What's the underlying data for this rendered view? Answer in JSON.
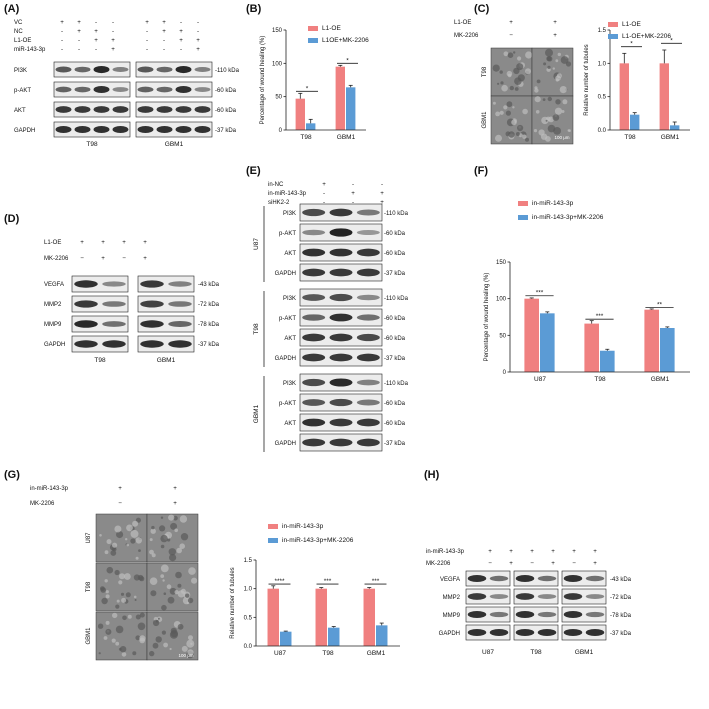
{
  "colors": {
    "red": "#F08080",
    "blue": "#5B9BD5",
    "blot_bg": "#ececec",
    "band": "#1a1a1a"
  },
  "panels": {
    "A": {
      "label": "(A)",
      "rows": [
        "VC",
        "NC",
        "L1-OE",
        "miR-143-3p"
      ],
      "signs_t98": [
        [
          "+",
          "+",
          "-",
          "-"
        ],
        [
          "-",
          "+",
          "+",
          "-"
        ],
        [
          "-",
          "-",
          "+",
          "+"
        ],
        [
          "-",
          "-",
          "-",
          "+"
        ]
      ],
      "signs_gbm1": [
        [
          "+",
          "+",
          "-",
          "-"
        ],
        [
          "-",
          "+",
          "+",
          "-"
        ],
        [
          "-",
          "-",
          "+",
          "+"
        ],
        [
          "-",
          "-",
          "-",
          "+"
        ]
      ],
      "bands": [
        "PI3K",
        "p-AKT",
        "AKT",
        "GAPDH"
      ],
      "kda": [
        "-110 kDa",
        "-60 kDa",
        "-60 kDa",
        "-37 kDa"
      ],
      "cells": [
        "T98",
        "GBM1"
      ]
    },
    "B": {
      "label": "(B)",
      "sig": [
        "*",
        "*"
      ]
    },
    "C": {
      "label": "(C)",
      "rows": [
        "L1-OE",
        "MK-2206"
      ],
      "signs": [
        [
          "+",
          "+"
        ],
        [
          "−",
          "+"
        ]
      ],
      "img_rows": [
        "T98",
        "GBM1"
      ],
      "scale": "100 μm",
      "sig": [
        "*",
        "*"
      ]
    },
    "D": {
      "label": "(D)",
      "rows": [
        "L1-OE",
        "MK-2206"
      ],
      "signs": [
        [
          "+",
          "+",
          "+",
          "+"
        ],
        [
          "−",
          "+",
          "−",
          "+"
        ]
      ],
      "bands": [
        "VEGFA",
        "MMP2",
        "MMP9",
        "GAPDH"
      ],
      "kda": [
        "-43 kDa",
        "-72 kDa",
        "-78 kDa",
        "-37 kDa"
      ],
      "cells": [
        "T98",
        "GBM1"
      ]
    },
    "E": {
      "label": "(E)",
      "rows": [
        "in-NC",
        "in-miR-143-3p",
        "siHK2-2"
      ],
      "signs": [
        [
          "+",
          "-",
          "-"
        ],
        [
          "-",
          "+",
          "+"
        ],
        [
          "-",
          "-",
          "+"
        ]
      ],
      "groups": [
        "U87",
        "T98",
        "GBM1"
      ],
      "bands": [
        "PI3K",
        "p-AKT",
        "AKT",
        "GAPDH"
      ],
      "kda": [
        "-110 kDa",
        "-60 kDa",
        "-60 kDa",
        "-37 kDa"
      ]
    },
    "F": {
      "label": "(F)",
      "sig": [
        "***",
        "***",
        "**"
      ]
    },
    "G": {
      "label": "(G)",
      "rows": [
        "in-miR-143-3p",
        "MK-2206"
      ],
      "signs": [
        [
          "+",
          "+"
        ],
        [
          "−",
          "+"
        ]
      ],
      "img_rows": [
        "U87",
        "T98",
        "GBM1"
      ],
      "scale": "100 μm",
      "sig": [
        "****",
        "***",
        "***"
      ]
    },
    "H": {
      "label": "(H)",
      "rows": [
        "in-miR-143-3p",
        "MK-2206"
      ],
      "signs": [
        [
          "+",
          "+",
          "+",
          "+",
          "+",
          "+"
        ],
        [
          "−",
          "+",
          "−",
          "+",
          "−",
          "+"
        ]
      ],
      "bands": [
        "VEGFA",
        "MMP2",
        "MMP9",
        "GAPDH"
      ],
      "kda": [
        "-43 kDa",
        "-72 kDa",
        "-78 kDa",
        "-37 kDa"
      ],
      "cells": [
        "U87",
        "T98",
        "GBM1"
      ]
    }
  },
  "chart_data": [
    {
      "panel": "B",
      "type": "bar",
      "categories": [
        "T98",
        "GBM1"
      ],
      "series": [
        {
          "name": "L1-OE",
          "values": [
            47,
            95
          ],
          "errors": [
            8,
            2
          ]
        },
        {
          "name": "L1OE+MK-2206",
          "values": [
            10,
            64
          ],
          "errors": [
            6,
            3
          ]
        }
      ],
      "ylabel": "Percentage of wound healing (%)",
      "ylim": [
        0,
        150
      ],
      "yticks": [
        0,
        50,
        100,
        150
      ],
      "legend": "top-left"
    },
    {
      "panel": "C",
      "type": "bar",
      "categories": [
        "T98",
        "GBM1"
      ],
      "series": [
        {
          "name": "L1-OE",
          "values": [
            1.0,
            1.0
          ],
          "errors": [
            0.15,
            0.2
          ]
        },
        {
          "name": "L1-OE+MK-2206",
          "values": [
            0.23,
            0.07
          ],
          "errors": [
            0.03,
            0.05
          ]
        }
      ],
      "ylabel": "Relative number of tubules",
      "ylim": [
        0,
        1.5
      ],
      "yticks": [
        0.0,
        0.5,
        1.0,
        1.5
      ],
      "legend": "top-right"
    },
    {
      "panel": "F",
      "type": "bar",
      "categories": [
        "U87",
        "T98",
        "GBM1"
      ],
      "series": [
        {
          "name": "in-miR-143-3p",
          "values": [
            100,
            66,
            85
          ],
          "errors": [
            1,
            4,
            1
          ]
        },
        {
          "name": "in-miR-143-3p+MK-2206",
          "values": [
            80,
            29,
            60
          ],
          "errors": [
            2,
            2,
            1.5
          ]
        }
      ],
      "ylabel": "Percentage of wound healing (%)",
      "ylim": [
        0,
        150
      ],
      "yticks": [
        0,
        50,
        100,
        150
      ],
      "legend": "top"
    },
    {
      "panel": "G",
      "type": "bar",
      "categories": [
        "U87",
        "T98",
        "GBM1"
      ],
      "series": [
        {
          "name": "in-miR-143-3p",
          "values": [
            1.0,
            1.0,
            1.0
          ],
          "errors": [
            0.05,
            0.02,
            0.02
          ]
        },
        {
          "name": "in-miR-143-3p+MK-2206",
          "values": [
            0.25,
            0.32,
            0.36
          ],
          "errors": [
            0.01,
            0.02,
            0.04
          ]
        }
      ],
      "ylabel": "Relative number of tubules",
      "ylim": [
        0,
        1.5
      ],
      "yticks": [
        0.0,
        0.5,
        1.0,
        1.5
      ],
      "legend": "top"
    }
  ]
}
